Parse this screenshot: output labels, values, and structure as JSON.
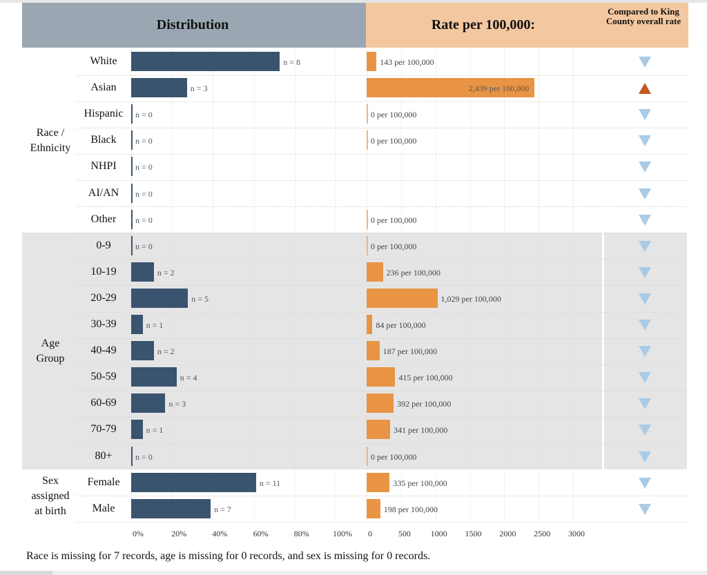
{
  "header": {
    "distribution_title": "Distribution",
    "rate_title": "Rate per 100,000:",
    "compare_title": "Compared to King County overall rate"
  },
  "colors": {
    "distribution_bar": "#3a546f",
    "rate_bar": "#e89444",
    "higher_marker": "#c0581f",
    "lower_marker": "#a9cbe6",
    "distribution_header": "#9aa7b3",
    "rate_header": "#f3c7a0"
  },
  "footnote": "Race is missing for 7 records, age is missing for 0 records, and sex is missing for 0 records.",
  "chart_data": {
    "type": "bar",
    "orientation": "horizontal",
    "groups": [
      {
        "name": "Race / Ethnicity",
        "shaded": false,
        "rows": [
          {
            "category": "White",
            "n": 8,
            "pct": 72.7,
            "n_label": "n = 8",
            "rate": 143,
            "rate_label": "143 per 100,000",
            "compare": "lower"
          },
          {
            "category": "Asian",
            "n": 3,
            "pct": 27.3,
            "n_label": "n = 3",
            "rate": 2439,
            "rate_label": "2,439 per 100,000",
            "compare": "higher"
          },
          {
            "category": "Hispanic",
            "n": 0,
            "pct": 0,
            "n_label": "n = 0",
            "rate": 0,
            "rate_label": "0 per 100,000",
            "compare": "lower"
          },
          {
            "category": "Black",
            "n": 0,
            "pct": 0,
            "n_label": "n = 0",
            "rate": 0,
            "rate_label": "0 per 100,000",
            "compare": "lower"
          },
          {
            "category": "NHPI",
            "n": 0,
            "pct": 0,
            "n_label": "n = 0",
            "rate": null,
            "rate_label": "",
            "compare": "lower"
          },
          {
            "category": "AI/AN",
            "n": 0,
            "pct": 0,
            "n_label": "n = 0",
            "rate": null,
            "rate_label": "",
            "compare": "lower"
          },
          {
            "category": "Other",
            "n": 0,
            "pct": 0,
            "n_label": "n = 0",
            "rate": 0,
            "rate_label": "0 per 100,000",
            "compare": "lower"
          }
        ]
      },
      {
        "name": "Age Group",
        "shaded": true,
        "rows": [
          {
            "category": "0-9",
            "n": 0,
            "pct": 0,
            "n_label": "n = 0",
            "rate": 0,
            "rate_label": "0 per 100,000",
            "compare": "lower"
          },
          {
            "category": "10-19",
            "n": 2,
            "pct": 11.1,
            "n_label": "n = 2",
            "rate": 236,
            "rate_label": "236 per 100,000",
            "compare": "lower"
          },
          {
            "category": "20-29",
            "n": 5,
            "pct": 27.8,
            "n_label": "n = 5",
            "rate": 1029,
            "rate_label": "1,029 per 100,000",
            "compare": "lower"
          },
          {
            "category": "30-39",
            "n": 1,
            "pct": 5.6,
            "n_label": "n = 1",
            "rate": 84,
            "rate_label": "84 per 100,000",
            "compare": "lower"
          },
          {
            "category": "40-49",
            "n": 2,
            "pct": 11.1,
            "n_label": "n = 2",
            "rate": 187,
            "rate_label": "187 per 100,000",
            "compare": "lower"
          },
          {
            "category": "50-59",
            "n": 4,
            "pct": 22.2,
            "n_label": "n = 4",
            "rate": 415,
            "rate_label": "415 per 100,000",
            "compare": "lower"
          },
          {
            "category": "60-69",
            "n": 3,
            "pct": 16.7,
            "n_label": "n = 3",
            "rate": 392,
            "rate_label": "392 per 100,000",
            "compare": "lower"
          },
          {
            "category": "70-79",
            "n": 1,
            "pct": 5.6,
            "n_label": "n = 1",
            "rate": 341,
            "rate_label": "341 per 100,000",
            "compare": "lower"
          },
          {
            "category": "80+",
            "n": 0,
            "pct": 0,
            "n_label": "n = 0",
            "rate": 0,
            "rate_label": "0 per 100,000",
            "compare": "lower"
          }
        ]
      },
      {
        "name": "Sex assigned at birth",
        "shaded": false,
        "rows": [
          {
            "category": "Female",
            "n": 11,
            "pct": 61.1,
            "n_label": "n = 11",
            "rate": 335,
            "rate_label": "335 per 100,000",
            "compare": "lower"
          },
          {
            "category": "Male",
            "n": 7,
            "pct": 38.9,
            "n_label": "n = 7",
            "rate": 198,
            "rate_label": "198 per 100,000",
            "compare": "lower"
          }
        ]
      }
    ],
    "group_label_lines": [
      [
        "Race /",
        "Ethnicity"
      ],
      [
        "Age",
        "Group"
      ],
      [
        "Sex",
        "assigned",
        "at birth"
      ]
    ],
    "distribution_axis": {
      "xlim": [
        0,
        100
      ],
      "ticks": [
        "0%",
        "20%",
        "40%",
        "60%",
        "80%",
        "100%"
      ],
      "tick_values": [
        0,
        20,
        40,
        60,
        80,
        100
      ]
    },
    "rate_axis": {
      "xlim": [
        0,
        3000
      ],
      "ticks": [
        "0",
        "500",
        "1000",
        "1500",
        "2000",
        "2500",
        "3000"
      ],
      "tick_values": [
        0,
        500,
        1000,
        1500,
        2000,
        2500,
        3000
      ]
    },
    "grid": true
  }
}
